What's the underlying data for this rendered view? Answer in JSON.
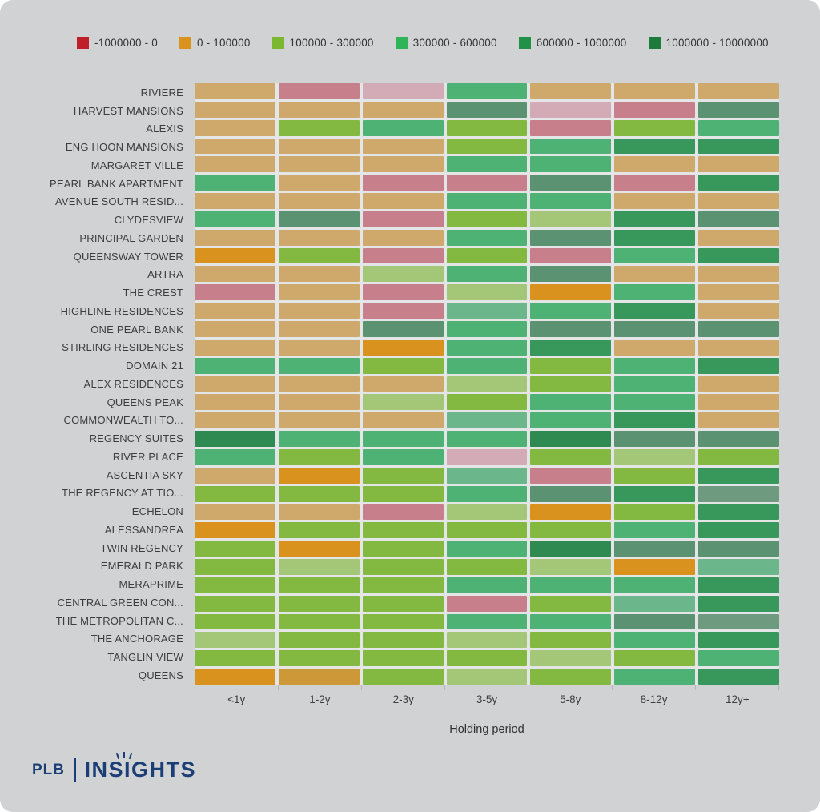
{
  "legend": {
    "items": [
      {
        "label": "-1000000 - 0",
        "color": "#c01e28"
      },
      {
        "label": "0 - 100000",
        "color": "#d9921e"
      },
      {
        "label": "100000 - 300000",
        "color": "#7cb82f"
      },
      {
        "label": "300000 - 600000",
        "color": "#2fb457"
      },
      {
        "label": "600000 - 1000000",
        "color": "#219147"
      },
      {
        "label": "1000000 - 10000000",
        "color": "#1e7b3c"
      }
    ]
  },
  "chart_data": {
    "type": "heatmap",
    "xlabel": "Holding period",
    "columns": [
      "<1y",
      "1-2y",
      "2-3y",
      "3-5y",
      "5-8y",
      "8-12y",
      "12y+"
    ],
    "rows": [
      "RIVIERE",
      "HARVEST MANSIONS",
      "ALEXIS",
      "ENG HOON MANSIONS",
      "MARGARET VILLE",
      "PEARL BANK APARTMENT",
      "AVENUE SOUTH RESID...",
      "CLYDESVIEW",
      "PRINCIPAL GARDEN",
      "QUEENSWAY TOWER",
      "ARTRA",
      "THE CREST",
      "HIGHLINE RESIDENCES",
      "ONE PEARL BANK",
      "STIRLING RESIDENCES",
      "DOMAIN 21",
      "ALEX RESIDENCES",
      "QUEENS PEAK",
      "COMMONWEALTH TO...",
      "REGENCY SUITES",
      "RIVER PLACE",
      "ASCENTIA SKY",
      "THE REGENCY AT TIO...",
      "ECHELON",
      "ALESSANDREA",
      "TWIN REGENCY",
      "EMERALD PARK",
      "MERAPRIME",
      "CENTRAL GREEN CON...",
      "THE METROPOLITAN C...",
      "THE ANCHORAGE",
      "TANGLIN VIEW",
      "QUEENS"
    ],
    "palette": {
      "R": "#c67f8b",
      "P": "#d2abb6",
      "O": "#d9921e",
      "o": "#cc9838",
      "T": "#cfa96b",
      "Y": "#83b841",
      "y": "#a4c777",
      "G": "#4eb274",
      "g": "#6cb68c",
      "D": "#38975a",
      "d": "#5b9372",
      "E": "#2e8a50",
      "e": "#6e9a80"
    },
    "bins": {
      "R": "-1000000 - 0",
      "P": "-1000000 - 0",
      "O": "0 - 100000",
      "o": "0 - 100000",
      "T": "0 - 100000",
      "Y": "100000 - 300000",
      "y": "100000 - 300000",
      "G": "300000 - 600000",
      "g": "300000 - 600000",
      "D": "600000 - 1000000",
      "d": "600000 - 1000000",
      "E": "1000000 - 10000000",
      "e": "1000000 - 10000000"
    },
    "cells": [
      "T R P G T T T",
      "T T T d P R d",
      "T Y G Y R Y G",
      "T T T Y G D D",
      "T T T G G T T",
      "G T R R d R D",
      "T T T G G T T",
      "G d R Y y D d",
      "T T T G d D T",
      "O Y R Y R G D",
      "T T y G d T T",
      "R T R y O G T",
      "T T R g G D T",
      "T T d G d d d",
      "T T O G D T T",
      "G G Y G Y G D",
      "T T T y Y G T",
      "T T y Y G G T",
      "T T T g G D T",
      "E G G G E d d",
      "G Y G P Y y Y",
      "T O Y g R Y D",
      "Y Y Y G d D e",
      "T T R y O Y D",
      "O Y Y Y Y G D",
      "Y O Y G E d d",
      "Y y Y Y y O g",
      "Y Y Y G G G D",
      "Y Y Y R Y g D",
      "Y Y Y G G d e",
      "y Y Y y Y G D",
      "Y Y Y Y y Y G",
      "O o Y y Y G D"
    ]
  },
  "footer": {
    "brand_left": "PLB",
    "brand_right": "INSIGHTS"
  }
}
